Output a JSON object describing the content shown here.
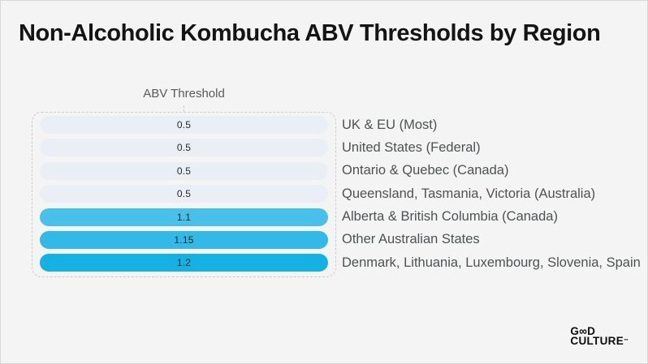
{
  "page": {
    "title": "Non-Alcoholic Kombucha ABV Thresholds by Region",
    "column_header": "ABV Threshold",
    "background_color": "#f4f4f4"
  },
  "chart_data": {
    "type": "bar",
    "orientation": "horizontal",
    "title": "Non-Alcoholic Kombucha ABV Thresholds by Region",
    "value_axis_label": "ABV Threshold",
    "categories": [
      "UK & EU (Most)",
      "United States (Federal)",
      "Ontario & Quebec (Canada)",
      "Queensland, Tasmania, Victoria (Australia)",
      "Alberta & British Columbia (Canada)",
      "Other Australian States",
      "Denmark, Lithuania, Luxembourg, Slovenia, Spain"
    ],
    "values": [
      0.5,
      0.5,
      0.5,
      0.5,
      1.1,
      1.15,
      1.2
    ],
    "value_labels": [
      "0.5",
      "0.5",
      "0.5",
      "0.5",
      "1.1",
      "1.15",
      "1.2"
    ],
    "bar_colors": [
      "#e9eff5",
      "#e9eff5",
      "#e9eff5",
      "#e9eff5",
      "#49c0e9",
      "#33b9e7",
      "#16b1e3"
    ],
    "layout_hints": {
      "equal_length_pills": true,
      "values_centered_in_bars": true,
      "category_labels_right_of_bars": true,
      "dashed_outline_around_bars": true,
      "grid": false,
      "legend": false
    }
  },
  "logo": {
    "line1_prefix": "G",
    "line1_infinity": "∞",
    "line1_suffix": "D",
    "line2": "CULTURE",
    "trademark": "™"
  }
}
